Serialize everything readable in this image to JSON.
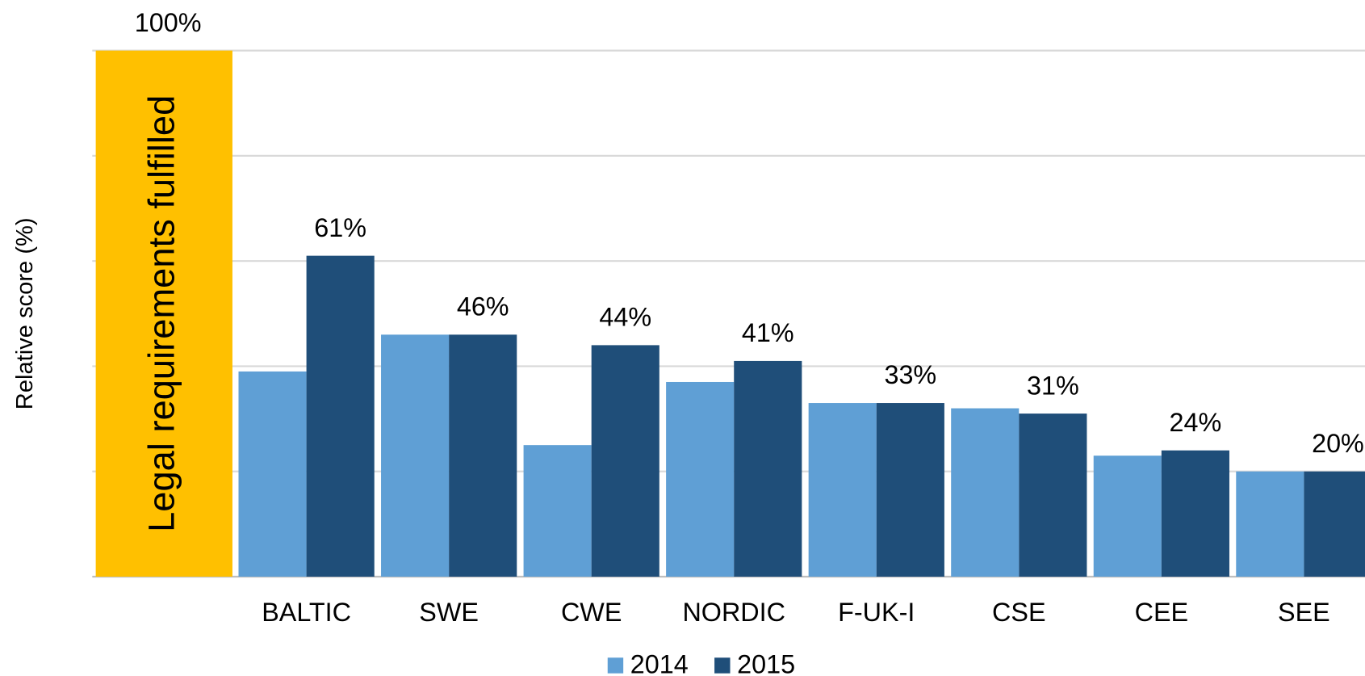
{
  "chart_data": {
    "type": "bar",
    "y_axis_label": "Relative score (%)",
    "categories": [
      "BALTIC",
      "SWE",
      "CWE",
      "NORDIC",
      "F-UK-I",
      "CSE",
      "CEE",
      "SEE"
    ],
    "series": [
      {
        "name": "2014",
        "color": "#5f9fd5",
        "values": [
          39,
          46,
          25,
          37,
          33,
          32,
          23,
          20
        ]
      },
      {
        "name": "2015",
        "color": "#1f4e79",
        "values": [
          61,
          46,
          44,
          41,
          33,
          31,
          24,
          20
        ],
        "value_labels": [
          "61%",
          "46%",
          "44%",
          "41%",
          "33%",
          "31%",
          "24%",
          "20%"
        ]
      }
    ],
    "reference_bar": {
      "label": "Legal requirements fulfilled",
      "value": 100,
      "value_label": "100%",
      "color": "#ffc000"
    },
    "ylim": [
      0,
      100
    ],
    "gridlines": [
      0,
      20,
      40,
      60,
      80,
      100
    ],
    "grid": true,
    "legend": "bottom"
  }
}
